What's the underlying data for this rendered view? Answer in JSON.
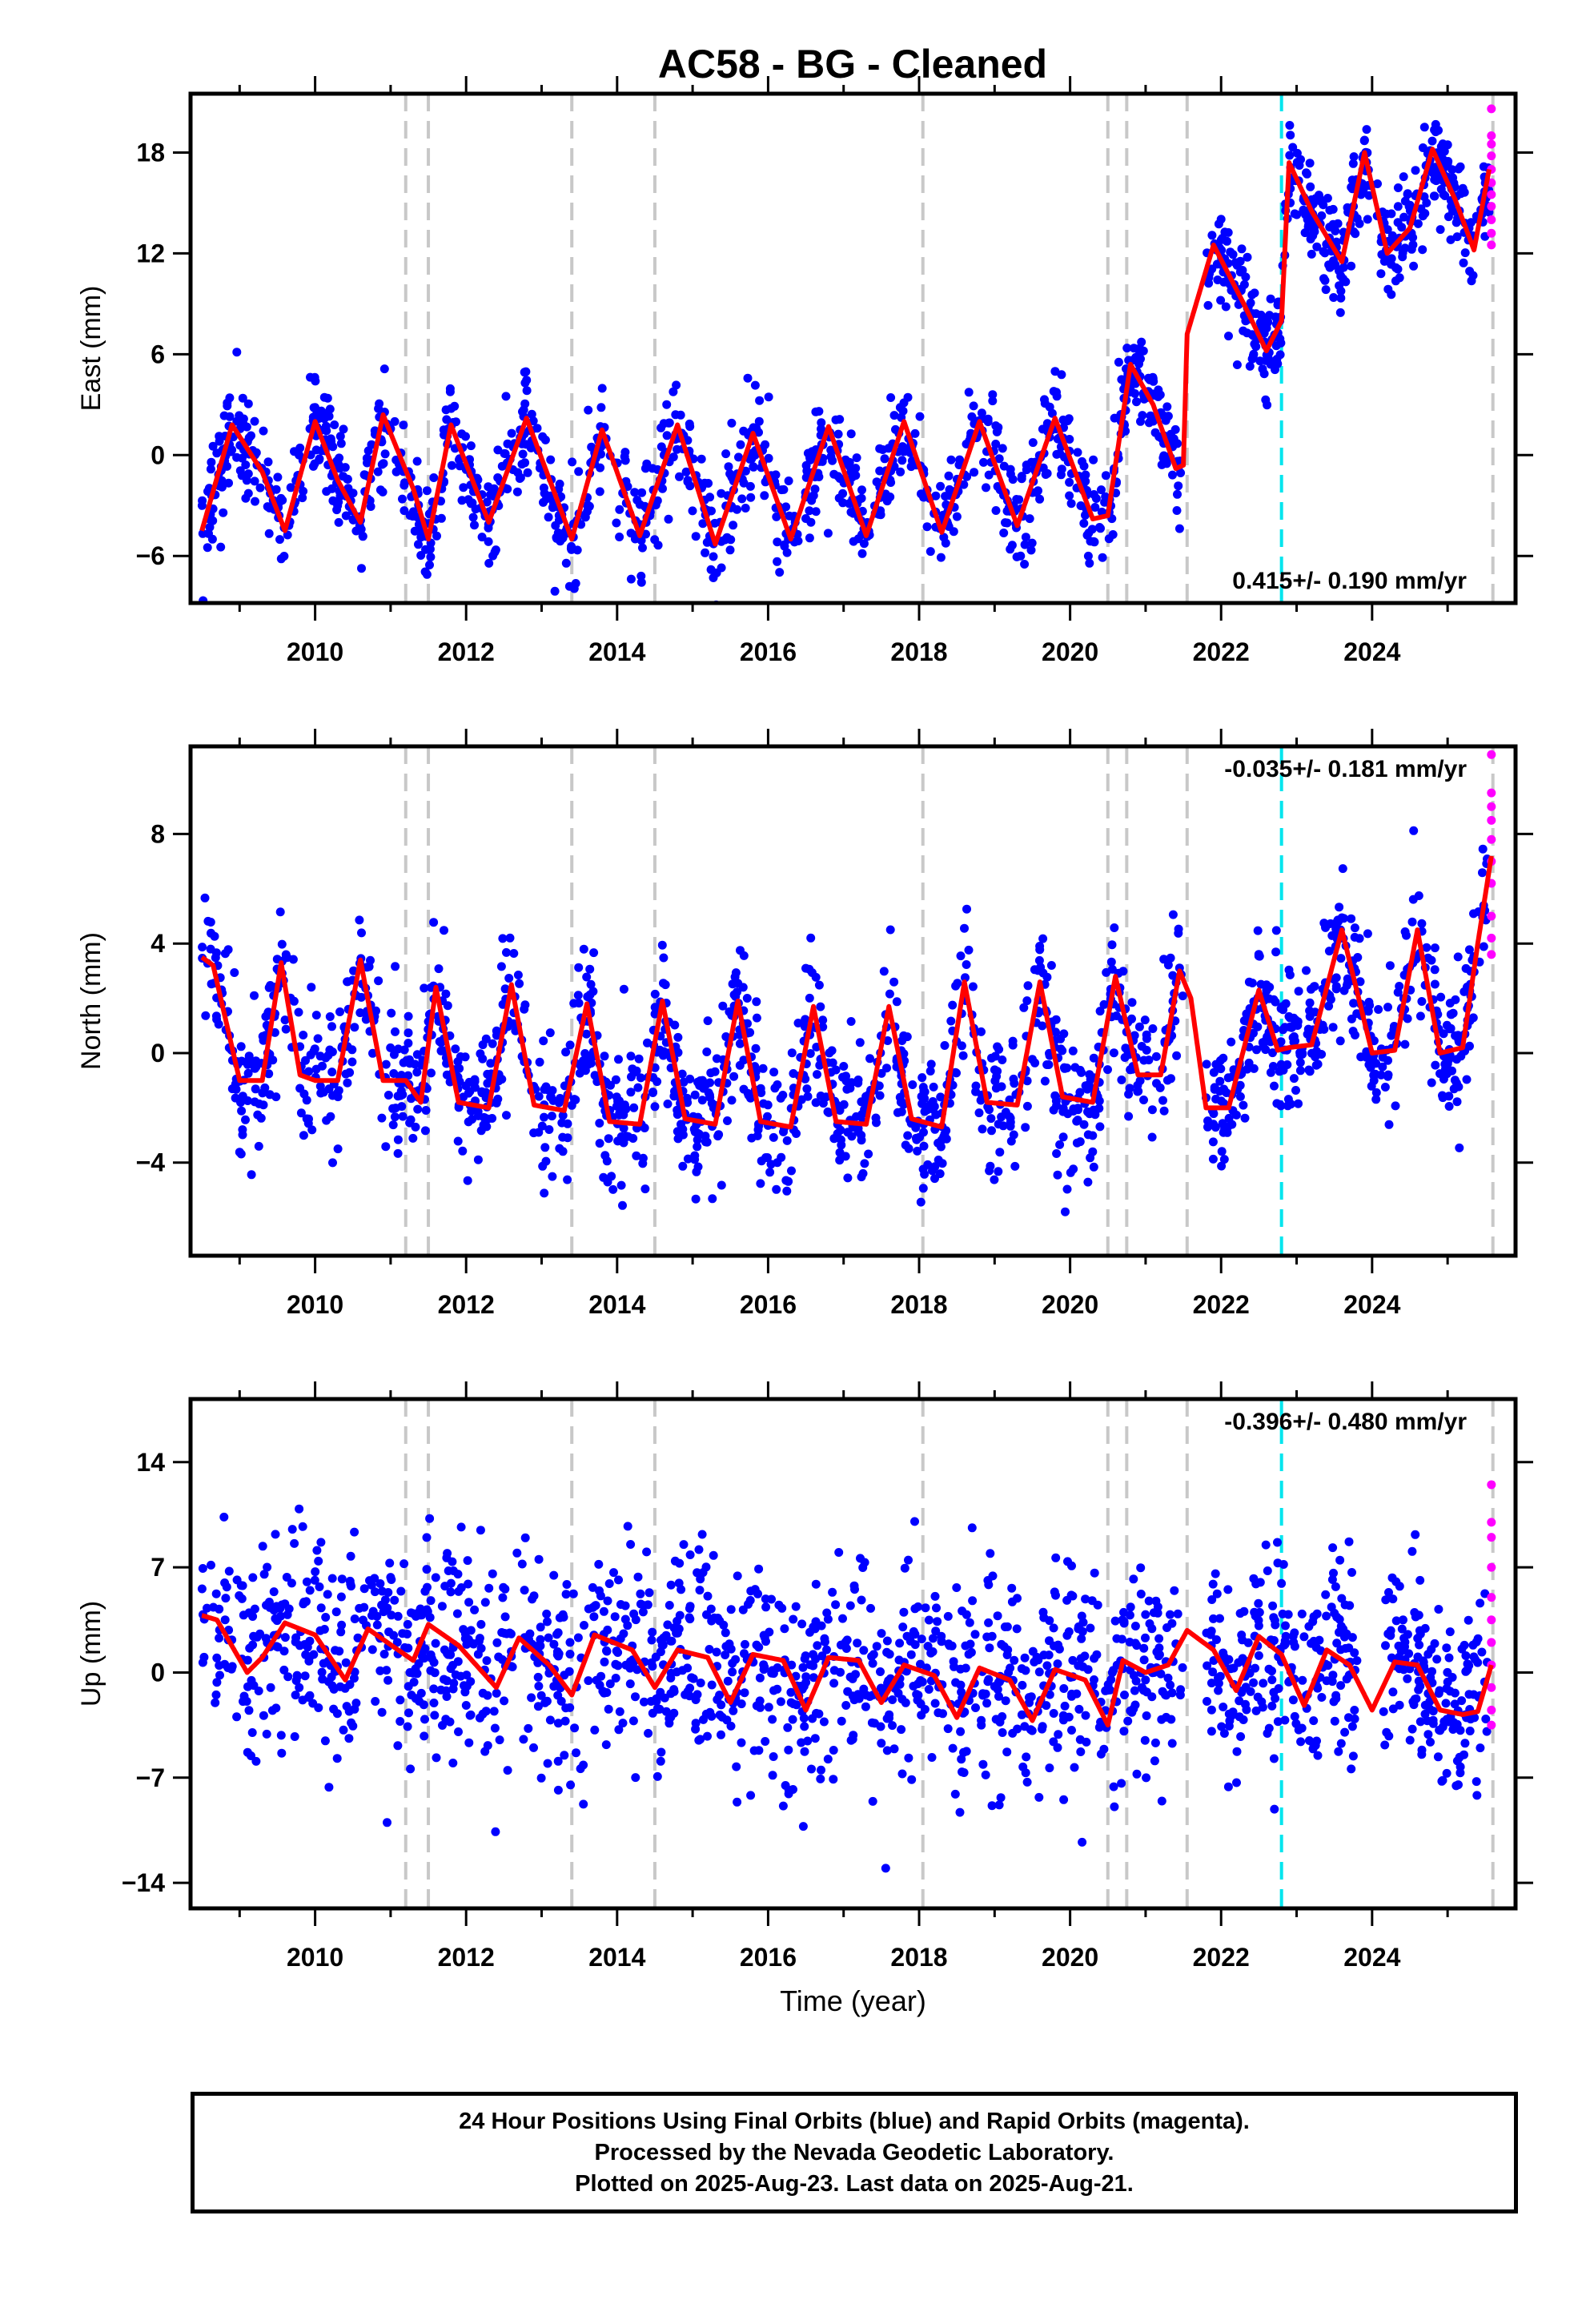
{
  "title": "AC58  - BG - Cleaned",
  "footer": {
    "lines": [
      "24 Hour Positions Using Final Orbits (blue) and Rapid Orbits (magenta).",
      "Processed by the Nevada Geodetic Laboratory.",
      "Plotted on 2025-Aug-23. Last data on 2025-Aug-21."
    ]
  },
  "chart_data": [
    {
      "type": "scatter",
      "title": "",
      "ylabel": "East (mm)",
      "xlabel": "",
      "xlim": [
        2008.35,
        2025.9
      ],
      "ylim": [
        -8.8,
        21.5
      ],
      "yticks": [
        -6,
        0,
        6,
        12,
        18
      ],
      "xticks": [
        2010,
        2012,
        2014,
        2016,
        2018,
        2020,
        2022,
        2024
      ],
      "rate_label": "0.415+/- 0.190 mm/yr",
      "rate_position": "bottom-right",
      "colors": {
        "final": "#0000ff",
        "rapid": "#ff00ff",
        "model": "#ff0000"
      },
      "model": {
        "name": "fit",
        "x": [
          2008.5,
          2008.9,
          2009.3,
          2009.6,
          2010.0,
          2010.3,
          2010.6,
          2010.9,
          2011.3,
          2011.5,
          2011.8,
          2012.3,
          2012.8,
          2013.4,
          2013.8,
          2014.3,
          2014.8,
          2015.3,
          2015.8,
          2016.3,
          2016.8,
          2017.3,
          2017.8,
          2018.3,
          2018.8,
          2019.3,
          2019.8,
          2020.3,
          2020.5,
          2020.8,
          2021.1,
          2021.4,
          2021.5,
          2021.55,
          2021.9,
          2022.3,
          2022.6,
          2022.8,
          2022.9,
          2023.2,
          2023.6,
          2023.9,
          2024.2,
          2024.5,
          2024.8,
          2025.1,
          2025.35,
          2025.55
        ],
        "y": [
          -4.5,
          1.8,
          -1.0,
          -4.5,
          2.0,
          -1.5,
          -4.0,
          2.4,
          -2.0,
          -5.0,
          1.8,
          -4.0,
          2.2,
          -5.0,
          1.5,
          -4.8,
          1.8,
          -5.3,
          1.3,
          -5.0,
          1.7,
          -4.8,
          2.0,
          -4.6,
          2.0,
          -4.2,
          2.2,
          -3.8,
          -3.6,
          5.4,
          3.0,
          -0.8,
          -0.6,
          7.2,
          12.5,
          9.0,
          6.2,
          8.0,
          17.4,
          14.5,
          11.5,
          18.0,
          12.0,
          13.5,
          18.2,
          15.2,
          12.2,
          17.0
        ]
      },
      "final_orbits": {
        "segments": [
          {
            "x0": 2008.5,
            "x1": 2009.3,
            "base": 0.5,
            "noise": 1.6,
            "n": 90
          },
          {
            "x0": 2009.3,
            "x1": 2020.6,
            "base": -1.3,
            "noise": 1.5,
            "n": 1000
          },
          {
            "x0": 2020.6,
            "x1": 2021.5,
            "base": 2.5,
            "noise": 1.4,
            "n": 110
          },
          {
            "x0": 2021.8,
            "x1": 2022.8,
            "base": 9.2,
            "noise": 1.4,
            "n": 130
          },
          {
            "x0": 2022.8,
            "x1": 2025.55,
            "base": 15.0,
            "noise": 1.4,
            "n": 320
          }
        ],
        "amplitude": 3.1
      },
      "rapid_orbits": {
        "x": 2025.58,
        "y": [
          12.5,
          13.2,
          14.0,
          14.8,
          15.5,
          16.2,
          17.0,
          17.8,
          18.5,
          19.0,
          20.6
        ]
      },
      "offsets_gray": [
        2011.2,
        2011.5,
        2013.4,
        2014.5,
        2018.05,
        2020.5,
        2020.75,
        2021.55,
        2025.6
      ],
      "offset_cyan": 2022.8
    },
    {
      "type": "scatter",
      "title": "",
      "ylabel": "North (mm)",
      "xlabel": "",
      "xlim": [
        2008.35,
        2025.9
      ],
      "ylim": [
        -7.4,
        11.2
      ],
      "yticks": [
        -4,
        0,
        4,
        8
      ],
      "xticks": [
        2010,
        2012,
        2014,
        2016,
        2018,
        2020,
        2022,
        2024
      ],
      "rate_label": "-0.035+/- 0.181 mm/yr",
      "rate_position": "top-right",
      "colors": {
        "final": "#0000ff",
        "rapid": "#ff00ff",
        "model": "#ff0000"
      },
      "model": {
        "name": "fit",
        "x": [
          2008.5,
          2008.65,
          2009.0,
          2009.3,
          2009.55,
          2009.8,
          2010.0,
          2010.3,
          2010.6,
          2010.9,
          2011.2,
          2011.4,
          2011.6,
          2011.9,
          2012.3,
          2012.6,
          2012.9,
          2013.3,
          2013.6,
          2013.9,
          2014.3,
          2014.6,
          2014.9,
          2015.3,
          2015.6,
          2015.9,
          2016.3,
          2016.6,
          2016.9,
          2017.3,
          2017.6,
          2017.9,
          2018.3,
          2018.6,
          2018.9,
          2019.3,
          2019.6,
          2019.9,
          2020.3,
          2020.6,
          2020.9,
          2021.2,
          2021.45,
          2021.6,
          2021.8,
          2022.1,
          2022.5,
          2022.75,
          2022.9,
          2023.2,
          2023.6,
          2024.0,
          2024.3,
          2024.6,
          2024.9,
          2025.2,
          2025.4,
          2025.58
        ],
        "y": [
          3.5,
          3.2,
          -1.0,
          -1.0,
          3.3,
          -0.8,
          -1.0,
          -1.0,
          3.4,
          -1.0,
          -1.0,
          -1.8,
          2.4,
          -1.8,
          -2.0,
          2.5,
          -1.9,
          -2.1,
          1.8,
          -2.5,
          -2.6,
          1.9,
          -2.4,
          -2.6,
          1.9,
          -2.5,
          -2.7,
          1.7,
          -2.5,
          -2.6,
          1.7,
          -2.4,
          -2.7,
          2.6,
          -1.8,
          -1.9,
          2.6,
          -1.6,
          -1.8,
          2.8,
          -0.8,
          -0.8,
          3.0,
          2.0,
          -2.0,
          -2.0,
          2.3,
          0.1,
          0.2,
          0.3,
          4.5,
          0.0,
          0.1,
          4.5,
          0.0,
          0.2,
          4.0,
          7.2
        ]
      },
      "final_orbits": {
        "segments": [
          {
            "x0": 2008.5,
            "x1": 2021.5,
            "base": 0.0,
            "noise": 1.3,
            "n": 1250
          },
          {
            "x0": 2021.8,
            "x1": 2022.8,
            "base": 0.0,
            "noise": 1.3,
            "n": 120
          },
          {
            "x0": 2022.8,
            "x1": 2025.55,
            "base": 1.5,
            "noise": 1.2,
            "n": 300
          }
        ],
        "amplitude": 2.3
      },
      "rapid_orbits": {
        "x": 2025.58,
        "y": [
          3.6,
          4.2,
          5.0,
          6.2,
          7.0,
          7.8,
          8.5,
          9.0,
          9.5,
          10.9
        ]
      },
      "offsets_gray": [
        2011.2,
        2011.5,
        2013.4,
        2014.5,
        2018.05,
        2020.5,
        2020.75,
        2021.55,
        2025.6
      ],
      "offset_cyan": 2022.8
    },
    {
      "type": "scatter",
      "title": "",
      "ylabel": "Up (mm)",
      "xlabel": "Time (year)",
      "xlim": [
        2008.35,
        2025.9
      ],
      "ylim": [
        -15.7,
        18.2
      ],
      "yticks": [
        -14,
        -7,
        0,
        7,
        14
      ],
      "xticks": [
        2010,
        2012,
        2014,
        2016,
        2018,
        2020,
        2022,
        2024
      ],
      "rate_label": "-0.396+/- 0.480 mm/yr",
      "rate_position": "top-right",
      "colors": {
        "final": "#0000ff",
        "rapid": "#ff00ff",
        "model": "#ff0000"
      },
      "model": {
        "name": "fit",
        "x": [
          2008.5,
          2008.7,
          2009.1,
          2009.3,
          2009.6,
          2010.0,
          2010.4,
          2010.7,
          2011.1,
          2011.3,
          2011.5,
          2011.9,
          2012.4,
          2012.7,
          2013.1,
          2013.4,
          2013.7,
          2014.2,
          2014.5,
          2014.8,
          2015.2,
          2015.5,
          2015.8,
          2016.2,
          2016.5,
          2016.8,
          2017.2,
          2017.5,
          2017.8,
          2018.2,
          2018.5,
          2018.8,
          2019.2,
          2019.5,
          2019.8,
          2020.2,
          2020.5,
          2020.7,
          2021.0,
          2021.3,
          2021.55,
          2021.9,
          2022.2,
          2022.5,
          2022.8,
          2023.1,
          2023.4,
          2023.7,
          2024.0,
          2024.3,
          2024.6,
          2024.9,
          2025.2,
          2025.4,
          2025.58
        ],
        "y": [
          3.8,
          3.5,
          0.0,
          1.0,
          3.3,
          2.5,
          -0.5,
          2.9,
          1.5,
          0.8,
          3.2,
          1.8,
          -1.0,
          2.3,
          0.5,
          -1.5,
          2.5,
          1.5,
          -1.0,
          1.5,
          1.0,
          -2.0,
          1.2,
          0.8,
          -2.5,
          1.0,
          0.8,
          -2.0,
          0.5,
          -0.2,
          -3.0,
          0.3,
          -0.5,
          -3.2,
          0.2,
          -0.5,
          -3.5,
          0.8,
          0.0,
          0.5,
          2.8,
          1.5,
          -1.2,
          2.4,
          1.2,
          -2.2,
          1.5,
          0.5,
          -2.5,
          0.7,
          0.5,
          -2.5,
          -2.8,
          -2.6,
          0.5
        ]
      },
      "final_orbits": {
        "segments": [
          {
            "x0": 2008.5,
            "x1": 2021.5,
            "base": 0.0,
            "noise": 3.5,
            "n": 1250
          },
          {
            "x0": 2021.8,
            "x1": 2022.8,
            "base": 0.0,
            "noise": 3.3,
            "n": 110
          },
          {
            "x0": 2022.8,
            "x1": 2023.8,
            "base": 0.0,
            "noise": 3.1,
            "n": 110
          },
          {
            "x0": 2024.15,
            "x1": 2025.55,
            "base": -1.0,
            "noise": 3.2,
            "n": 160
          }
        ],
        "amplitude": 1.8
      },
      "rapid_orbits": {
        "x": 2025.58,
        "y": [
          -3.5,
          -2.5,
          -1.0,
          0.5,
          2.0,
          3.5,
          5.0,
          7.0,
          9.0,
          10.0,
          12.5
        ]
      },
      "offsets_gray": [
        2011.2,
        2011.5,
        2013.4,
        2014.5,
        2018.05,
        2020.5,
        2020.75,
        2021.55,
        2025.6
      ],
      "offset_cyan": 2022.8
    }
  ]
}
